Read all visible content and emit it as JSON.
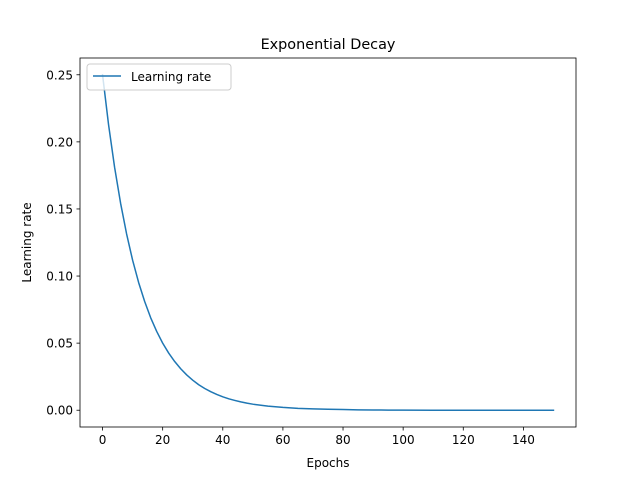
{
  "chart_data": {
    "type": "line",
    "title": "Exponential Decay",
    "xlabel": "Epochs",
    "ylabel": "Learning rate",
    "xlim": [
      -7.5,
      157.5
    ],
    "ylim": [
      -0.0125,
      0.2625
    ],
    "xticks": [
      0,
      20,
      40,
      60,
      80,
      100,
      120,
      140
    ],
    "xtick_labels": [
      "0",
      "20",
      "40",
      "60",
      "80",
      "100",
      "120",
      "140"
    ],
    "yticks": [
      0.0,
      0.05,
      0.1,
      0.15,
      0.2,
      0.25
    ],
    "ytick_labels": [
      "0.00",
      "0.05",
      "0.10",
      "0.15",
      "0.20",
      "0.25"
    ],
    "grid": false,
    "legend_position": "upper-left",
    "series": [
      {
        "name": "Learning rate",
        "color": "#1f77b4",
        "x": [
          0,
          2,
          4,
          6,
          8,
          10,
          12,
          14,
          16,
          18,
          20,
          22,
          24,
          26,
          28,
          30,
          32,
          34,
          36,
          38,
          40,
          42,
          44,
          46,
          48,
          50,
          55,
          60,
          65,
          70,
          75,
          80,
          85,
          90,
          95,
          100,
          110,
          120,
          130,
          140,
          150
        ],
        "y": [
          0.25,
          0.2128,
          0.1812,
          0.1543,
          0.1314,
          0.1118,
          0.0952,
          0.0811,
          0.069,
          0.0588,
          0.05,
          0.0426,
          0.0363,
          0.0309,
          0.0263,
          0.0224,
          0.019,
          0.0162,
          0.0138,
          0.0118,
          0.01,
          0.0085,
          0.0073,
          0.0062,
          0.0053,
          0.0045,
          0.0031,
          0.0021,
          0.0014,
          0.001,
          0.0007,
          0.0005,
          0.0003,
          0.0002,
          0.0001,
          0.0001,
          0.0,
          0.0,
          0.0,
          0.0,
          0.0
        ]
      }
    ]
  }
}
